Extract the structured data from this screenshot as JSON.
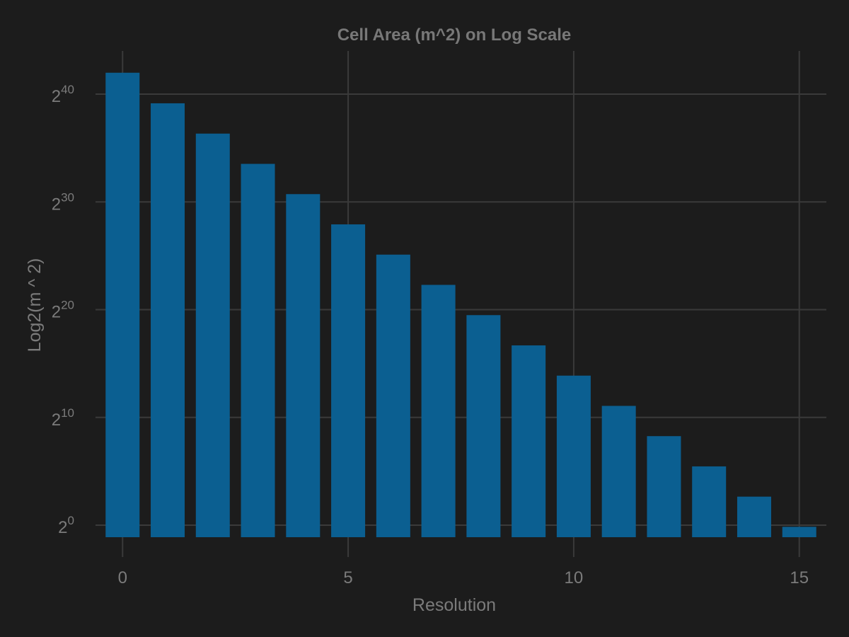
{
  "chart_data": {
    "type": "bar",
    "title": "Cell Area (m^2) on Log Scale",
    "xlabel": "Resolution",
    "ylabel": "Log2(m ^ 2)",
    "scale_y": "log2",
    "x": [
      0,
      1,
      2,
      3,
      4,
      5,
      6,
      7,
      8,
      9,
      10,
      11,
      12,
      13,
      14,
      15
    ],
    "values": [
      4357449416078.39,
      609788441794.134,
      86801780398.9974,
      12393434655.0882,
      1770347654.4915,
      252903858.182636,
      36129062.1644695,
      5161293.36,
      737327.59,
      105332.51,
      15047.5,
      2149.64,
      307.09,
      43.87,
      6.27,
      0.9
    ],
    "xticks": [
      0,
      5,
      10,
      15
    ],
    "yticks": [
      {
        "base": "2",
        "exp": "0"
      },
      {
        "base": "2",
        "exp": "10"
      },
      {
        "base": "2",
        "exp": "20"
      },
      {
        "base": "2",
        "exp": "30"
      },
      {
        "base": "2",
        "exp": "40"
      }
    ],
    "xlim": [
      -0.6,
      15.6
    ],
    "grid": true,
    "legend": "none",
    "colors": {
      "background": "#1c1c1c",
      "bar": "#0b5f91",
      "grid": "#3a3a3a",
      "text": "#7b7b7b",
      "title": "#787878"
    }
  }
}
